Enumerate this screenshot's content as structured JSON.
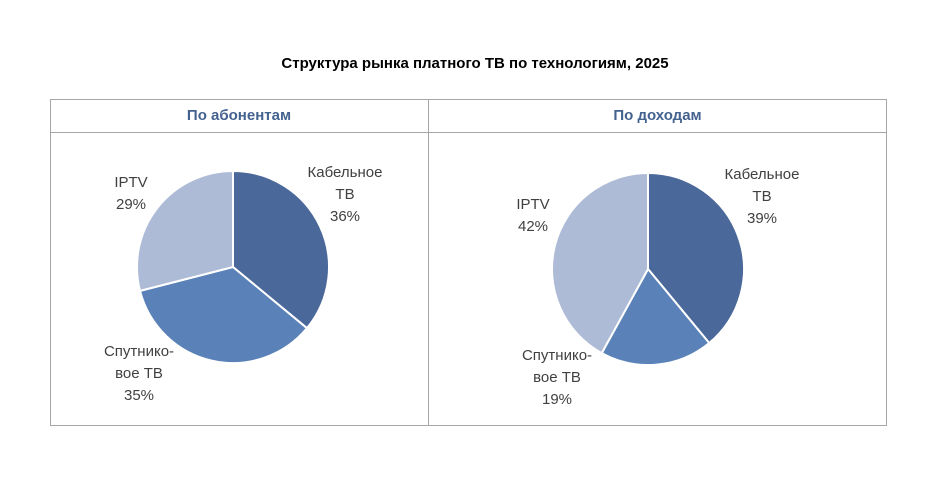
{
  "chart_data": [
    {
      "type": "pie",
      "title": "По абонентам",
      "slices": [
        {
          "label": "Кабельное ТВ",
          "lines": [
            "Кабельное",
            "ТВ"
          ],
          "value": 36,
          "text": "36%",
          "color": "#4a6899"
        },
        {
          "label": "Спутниковое ТВ",
          "lines": [
            "Спутнико-",
            "вое ТВ"
          ],
          "value": 35,
          "text": "35%",
          "color": "#5a82b8"
        },
        {
          "label": "IPTV",
          "lines": [
            "IPTV"
          ],
          "value": 29,
          "text": "29%",
          "color": "#adbbd6"
        }
      ]
    },
    {
      "type": "pie",
      "title": "По доходам",
      "slices": [
        {
          "label": "Кабельное ТВ",
          "lines": [
            "Кабельное",
            "ТВ"
          ],
          "value": 39,
          "text": "39%",
          "color": "#4a6899"
        },
        {
          "label": "Спутниковое ТВ",
          "lines": [
            "Спутнико-",
            "вое ТВ"
          ],
          "value": 19,
          "text": "19%",
          "color": "#5a82b8"
        },
        {
          "label": "IPTV",
          "lines": [
            "IPTV"
          ],
          "value": 42,
          "text": "42%",
          "color": "#adbbd6"
        }
      ]
    }
  ],
  "title": "Структура рынка платного ТВ по технологиям, 2025"
}
